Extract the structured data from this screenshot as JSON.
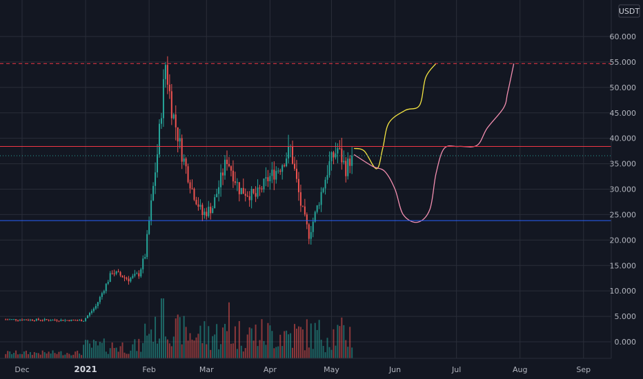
{
  "chart_data": {
    "type": "candlestick",
    "unit": "USDT",
    "y_ticks": [
      "60.000",
      "55.000",
      "50.000",
      "45.000",
      "40.000",
      "35.000",
      "30.000",
      "25.000",
      "20.000",
      "15.000",
      "10.000",
      "5.000",
      "0.000"
    ],
    "ylim": [
      -2,
      62
    ],
    "x_ticks": [
      {
        "label": "Dec",
        "day": 0,
        "bold": false
      },
      {
        "label": "2021",
        "day": 31,
        "bold": true
      },
      {
        "label": "Feb",
        "day": 62,
        "bold": false
      },
      {
        "label": "Mar",
        "day": 90,
        "bold": false
      },
      {
        "label": "Apr",
        "day": 121,
        "bold": false
      },
      {
        "label": "May",
        "day": 151,
        "bold": false
      },
      {
        "label": "Jun",
        "day": 182,
        "bold": false
      },
      {
        "label": "Jul",
        "day": 212,
        "bold": false
      },
      {
        "label": "Aug",
        "day": 243,
        "bold": false
      },
      {
        "label": "Sep",
        "day": 274,
        "bold": false
      }
    ],
    "colors": {
      "up": "#26a69a",
      "down": "#ef5350",
      "background": "#131722",
      "grid": "#2a2e39",
      "axis_text": "#b2b5be"
    },
    "levels": [
      {
        "label": "54.687",
        "value": 54.687,
        "color": "#f23645",
        "style": "dashed"
      },
      {
        "label": "38.389",
        "value": 38.389,
        "color": "#f23645",
        "style": "solid"
      },
      {
        "label": "36.572",
        "value": 36.572,
        "color": "#26a69a",
        "style": "dotted"
      },
      {
        "label": "23.821",
        "value": 23.821,
        "color": "#2962ff",
        "style": "solid"
      }
    ],
    "anchors": [
      {
        "day": -8,
        "close": 4.4
      },
      {
        "day": 30,
        "close": 4.2
      },
      {
        "day": 36,
        "close": 7.0
      },
      {
        "day": 44,
        "close": 13.8
      },
      {
        "day": 52,
        "close": 12.3
      },
      {
        "day": 57,
        "close": 13.3
      },
      {
        "day": 60,
        "close": 17.0
      },
      {
        "day": 66,
        "close": 37.0
      },
      {
        "day": 70,
        "close": 54.6
      },
      {
        "day": 73,
        "close": 46.0
      },
      {
        "day": 78,
        "close": 37.0
      },
      {
        "day": 83,
        "close": 30.0
      },
      {
        "day": 88,
        "close": 25.0
      },
      {
        "day": 93,
        "close": 26.5
      },
      {
        "day": 100,
        "close": 36.0
      },
      {
        "day": 106,
        "close": 30.0
      },
      {
        "day": 114,
        "close": 28.5
      },
      {
        "day": 120,
        "close": 32.0
      },
      {
        "day": 126,
        "close": 34.5
      },
      {
        "day": 131,
        "close": 38.0
      },
      {
        "day": 136,
        "close": 27.0
      },
      {
        "day": 140,
        "close": 21.0
      },
      {
        "day": 143,
        "close": 25.0
      },
      {
        "day": 150,
        "close": 35.0
      },
      {
        "day": 154,
        "close": 38.0
      },
      {
        "day": 158,
        "close": 34.0
      },
      {
        "day": 161,
        "close": 36.6
      }
    ],
    "projections": [
      {
        "name": "",
        "color": "#f5e642",
        "points": [
          [
            162,
            38.0
          ],
          [
            167,
            37.5
          ],
          [
            173,
            34.0
          ],
          [
            176,
            38.0
          ],
          [
            179,
            43.0
          ],
          [
            187,
            45.5
          ],
          [
            194,
            46.5
          ],
          [
            197,
            52.0
          ],
          [
            202,
            54.7
          ]
        ]
      },
      {
        "name": "",
        "color": "#f48fb1",
        "points": [
          [
            162,
            36.8
          ],
          [
            171,
            34.5
          ],
          [
            177,
            33.5
          ],
          [
            182,
            30.0
          ],
          [
            186,
            25.0
          ],
          [
            193,
            23.5
          ],
          [
            199,
            26.0
          ],
          [
            202,
            33.0
          ],
          [
            206,
            38.0
          ],
          [
            213,
            38.4
          ],
          [
            222,
            38.6
          ],
          [
            227,
            42.0
          ],
          [
            235,
            46.0
          ],
          [
            237,
            49.0
          ],
          [
            240,
            54.7
          ]
        ]
      }
    ]
  }
}
